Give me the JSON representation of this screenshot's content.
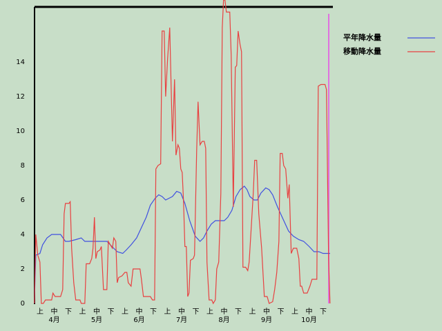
{
  "chart_data": {
    "type": "line",
    "xlim": [
      0,
      210
    ],
    "ylim": [
      0,
      17.2
    ],
    "yticks": [
      0,
      2,
      4,
      6,
      8,
      10,
      12,
      14
    ],
    "xticks": [
      {
        "value": 5,
        "label": "上"
      },
      {
        "value": 15,
        "label": "中"
      },
      {
        "value": 25,
        "label": "下"
      },
      {
        "value": 35,
        "label": "上"
      },
      {
        "value": 45,
        "label": "中"
      },
      {
        "value": 55,
        "label": "下"
      },
      {
        "value": 65,
        "label": "上"
      },
      {
        "value": 75,
        "label": "中"
      },
      {
        "value": 85,
        "label": "下"
      },
      {
        "value": 95,
        "label": "上"
      },
      {
        "value": 105,
        "label": "中"
      },
      {
        "value": 115,
        "label": "下"
      },
      {
        "value": 125,
        "label": "上"
      },
      {
        "value": 135,
        "label": "中"
      },
      {
        "value": 145,
        "label": "下"
      },
      {
        "value": 155,
        "label": "上"
      },
      {
        "value": 165,
        "label": "中"
      },
      {
        "value": 175,
        "label": "下"
      },
      {
        "value": 185,
        "label": "上"
      },
      {
        "value": 195,
        "label": "中"
      },
      {
        "value": 205,
        "label": "下"
      }
    ],
    "month_ticks": [
      {
        "value": 15,
        "label": "4月"
      },
      {
        "value": 45,
        "label": "5月"
      },
      {
        "value": 75,
        "label": "6月"
      },
      {
        "value": 105,
        "label": "7月"
      },
      {
        "value": 135,
        "label": "8月"
      },
      {
        "value": 165,
        "label": "9月"
      },
      {
        "value": 195,
        "label": "10月"
      }
    ],
    "series": [
      {
        "name": "平年降水量",
        "color": "#4050e0",
        "x": [
          1,
          2,
          4.9,
          6.8,
          9.9,
          13.2,
          15.6,
          19.5,
          22.9,
          25.4,
          30.2,
          34.1,
          36.6,
          42.4,
          52.2,
          54.6,
          59.5,
          63.4,
          65.9,
          69.3,
          73.2,
          76.6,
          80,
          82.9,
          86.3,
          88.8,
          91.2,
          93.7,
          96.1,
          98.5,
          101.5,
          104.4,
          107.3,
          110.7,
          114.6,
          118,
          120.5,
          122.9,
          125.9,
          128.8,
          135.1,
          137.6,
          140.5,
          143.4,
          146.3,
          149.3,
          151.2,
          153.2,
          156.1,
          158.5,
          161,
          164.4,
          166.8,
          169.3,
          172.7,
          176.6,
          180.5,
          183.9,
          187.8,
          191.2,
          195.1,
          198.5,
          201.9,
          204.9,
          209.8
        ],
        "values": [
          0,
          2.8,
          2.9,
          3.4,
          3.8,
          4,
          4,
          4,
          3.6,
          3.6,
          3.7,
          3.8,
          3.6,
          3.6,
          3.6,
          3.4,
          3,
          2.9,
          3.1,
          3.4,
          3.8,
          4.4,
          5,
          5.7,
          6.1,
          6.3,
          6.2,
          6,
          6.1,
          6.2,
          6.5,
          6.4,
          5.8,
          4.8,
          3.9,
          3.6,
          3.8,
          4.2,
          4.6,
          4.8,
          4.8,
          5,
          5.4,
          6.2,
          6.6,
          6.8,
          6.6,
          6.2,
          6,
          6,
          6.4,
          6.7,
          6.6,
          6.3,
          5.6,
          4.9,
          4.2,
          3.9,
          3.7,
          3.6,
          3.3,
          3,
          3,
          2.9,
          2.9
        ]
      },
      {
        "name": "移動降水量",
        "color": "#e84040",
        "x": [
          1,
          2,
          3.4,
          4.9,
          5.9,
          7.3,
          8.8,
          13.2,
          14.1,
          15.6,
          19.5,
          21,
          22,
          22.9,
          24.4,
          25.4,
          26.3,
          27.3,
          28.8,
          30.2,
          33.2,
          34.1,
          36.6,
          37.6,
          40,
          41.5,
          42.4,
          43.4,
          44.4,
          45.4,
          47.3,
          48.3,
          49.8,
          52.2,
          53.2,
          54.6,
          56.1,
          57.1,
          58.5,
          59.5,
          60.5,
          62.9,
          64.9,
          66.3,
          67.3,
          69.3,
          70.7,
          75.6,
          76.6,
          78,
          82.9,
          84.4,
          85.9,
          86.8,
          88.3,
          90.2,
          91.2,
          92.7,
          93.7,
          95.1,
          96.6,
          98.5,
          100,
          101,
          102.4,
          103.4,
          104.4,
          105.4,
          106.3,
          107.3,
          108.3,
          109.3,
          110.2,
          111.2,
          113.2,
          114.1,
          115.6,
          116.6,
          118,
          119.5,
          121,
          122,
          122.9,
          124.4,
          126.3,
          127.3,
          128.8,
          129.8,
          131.2,
          132.7,
          133.7,
          134.6,
          135.6,
          136.6,
          139,
          140,
          141.5,
          142.9,
          143.9,
          144.9,
          146.3,
          147.3,
          148.3,
          150.2,
          151.7,
          152.7,
          154.6,
          155.6,
          156.6,
          158,
          159.5,
          161.5,
          163.4,
          165.4,
          166.8,
          169.3,
          170.7,
          172.2,
          173.7,
          174.6,
          176.1,
          177.1,
          178.5,
          180,
          181,
          182.4,
          183.9,
          186.3,
          187.8,
          188.8,
          189.8,
          191.2,
          193.7,
          195.6,
          197.1,
          198.5,
          200.5,
          201.5,
          203.4,
          206.3,
          207.3,
          208.8,
          209.8
        ],
        "values": [
          0,
          4,
          2.8,
          2.4,
          0,
          0,
          0.2,
          0.2,
          0.6,
          0.4,
          0.4,
          0.8,
          5.2,
          5.8,
          5.8,
          5.8,
          5.9,
          3.2,
          1.2,
          0.2,
          0.2,
          0,
          0,
          2.3,
          2.3,
          2.6,
          3.2,
          5,
          2.6,
          3,
          3.1,
          3.3,
          0.8,
          0.8,
          3.6,
          3.4,
          3.2,
          3.8,
          3.6,
          1.2,
          1.5,
          1.6,
          1.8,
          1.8,
          1.2,
          1,
          2,
          2,
          1.4,
          0.4,
          0.4,
          0.2,
          0.2,
          7.8,
          8,
          8.1,
          15.8,
          15.8,
          12,
          14.2,
          16,
          9.4,
          13,
          8.6,
          9.2,
          9,
          7.8,
          7.6,
          6,
          3.3,
          3.3,
          0.4,
          0.6,
          2.5,
          2.6,
          2.8,
          8.8,
          11.7,
          9.2,
          9.4,
          9.4,
          9,
          2.4,
          0.2,
          0.2,
          0,
          0.2,
          2,
          2.4,
          6.4,
          16,
          17.6,
          17.6,
          16.9,
          16.9,
          14.4,
          5.6,
          13.7,
          13.8,
          15.8,
          15,
          14.6,
          2.1,
          2.1,
          1.9,
          2.4,
          5,
          6.4,
          8.3,
          8.3,
          5.2,
          3.2,
          0.4,
          0.4,
          0,
          0.1,
          0.8,
          1.8,
          3.6,
          8.7,
          8.7,
          8,
          7.8,
          6.1,
          6.9,
          2.9,
          3.2,
          3.2,
          2.6,
          1,
          1,
          0.6,
          0.6,
          1,
          1.4,
          1.4,
          1.4,
          12.6,
          12.7,
          12.7,
          12.4,
          2.6,
          0
        ]
      }
    ]
  }
}
